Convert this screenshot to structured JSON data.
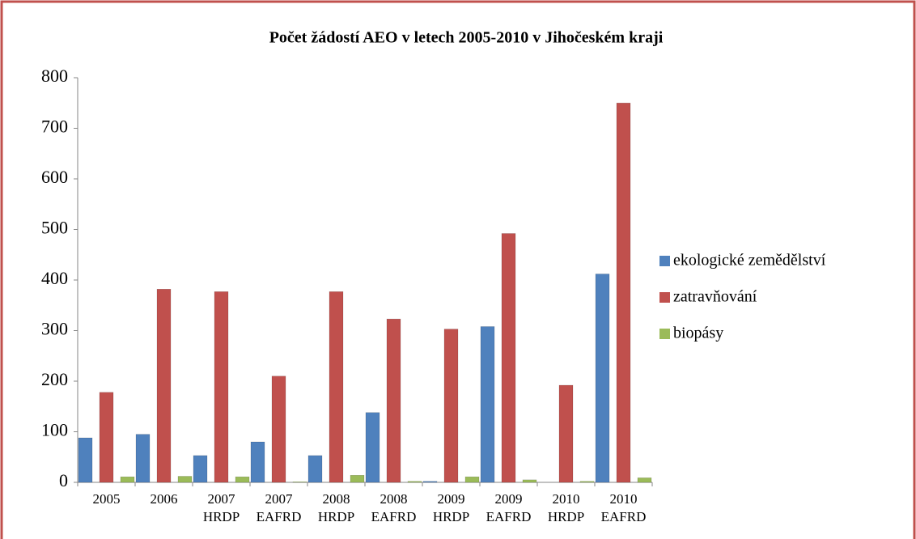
{
  "chart_data": {
    "type": "bar",
    "title": "Počet žádostí AEO v letech 2005-2010 v Jihočeském kraji",
    "categories": [
      "2005",
      "2006",
      "2007 HRDP",
      "2007 EAFRD",
      "2008 HRDP",
      "2008 EAFRD",
      "2009 HRDP",
      "2009 EAFRD",
      "2010 HRDP",
      "2010 EAFRD"
    ],
    "series": [
      {
        "name": "ekologické zemědělství",
        "color": "#4f81bd",
        "values": [
          88,
          95,
          53,
          80,
          53,
          138,
          2,
          308,
          0,
          412
        ]
      },
      {
        "name": "zatravňování",
        "color": "#c0504d",
        "values": [
          178,
          382,
          377,
          210,
          377,
          323,
          303,
          492,
          192,
          750
        ]
      },
      {
        "name": "biopásy",
        "color": "#9bbb59",
        "values": [
          11,
          12,
          11,
          1,
          14,
          2,
          11,
          5,
          2,
          9
        ]
      }
    ],
    "ylim": [
      0,
      800
    ],
    "yticks": [
      0,
      100,
      200,
      300,
      400,
      500,
      600,
      700,
      800
    ],
    "grid": false,
    "legend": "right"
  }
}
